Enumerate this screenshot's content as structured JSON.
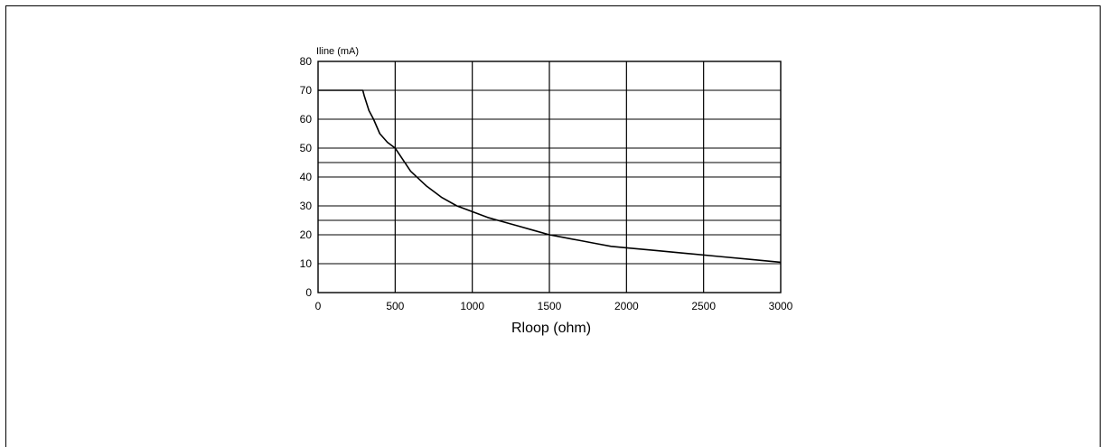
{
  "chart_data": {
    "type": "line",
    "title": "",
    "xlabel": "Rloop (ohm)",
    "ylabel": "Iline (mA)",
    "xlim": [
      0,
      3000
    ],
    "ylim": [
      0,
      80
    ],
    "x_ticks": [
      "0",
      "500",
      "1000",
      "1500",
      "2000",
      "2500",
      "3000"
    ],
    "y_ticks": [
      "0",
      "10",
      "20",
      "30",
      "40",
      "50",
      "60",
      "70",
      "80"
    ],
    "grid": true,
    "extra_gridlines_y": [
      25,
      45
    ],
    "series": [
      {
        "x": [
          0,
          290,
          300,
          330,
          360,
          400,
          450,
          500,
          550,
          600,
          700,
          800,
          900,
          1000,
          1100,
          1200,
          1300,
          1400,
          1500,
          1600,
          1700,
          1800,
          1900,
          2000,
          2200,
          2400,
          2600,
          2800,
          3000
        ],
        "y": [
          70,
          70,
          68,
          63,
          60,
          55,
          52,
          50,
          46,
          42,
          37,
          33,
          30,
          28,
          26,
          24.5,
          23,
          21.5,
          20,
          19,
          18,
          17,
          16,
          15.5,
          14.5,
          13.5,
          12.5,
          11.5,
          10.5
        ]
      }
    ]
  },
  "colors": {
    "line": "#000000",
    "grid": "#000000",
    "background": "#ffffff"
  }
}
